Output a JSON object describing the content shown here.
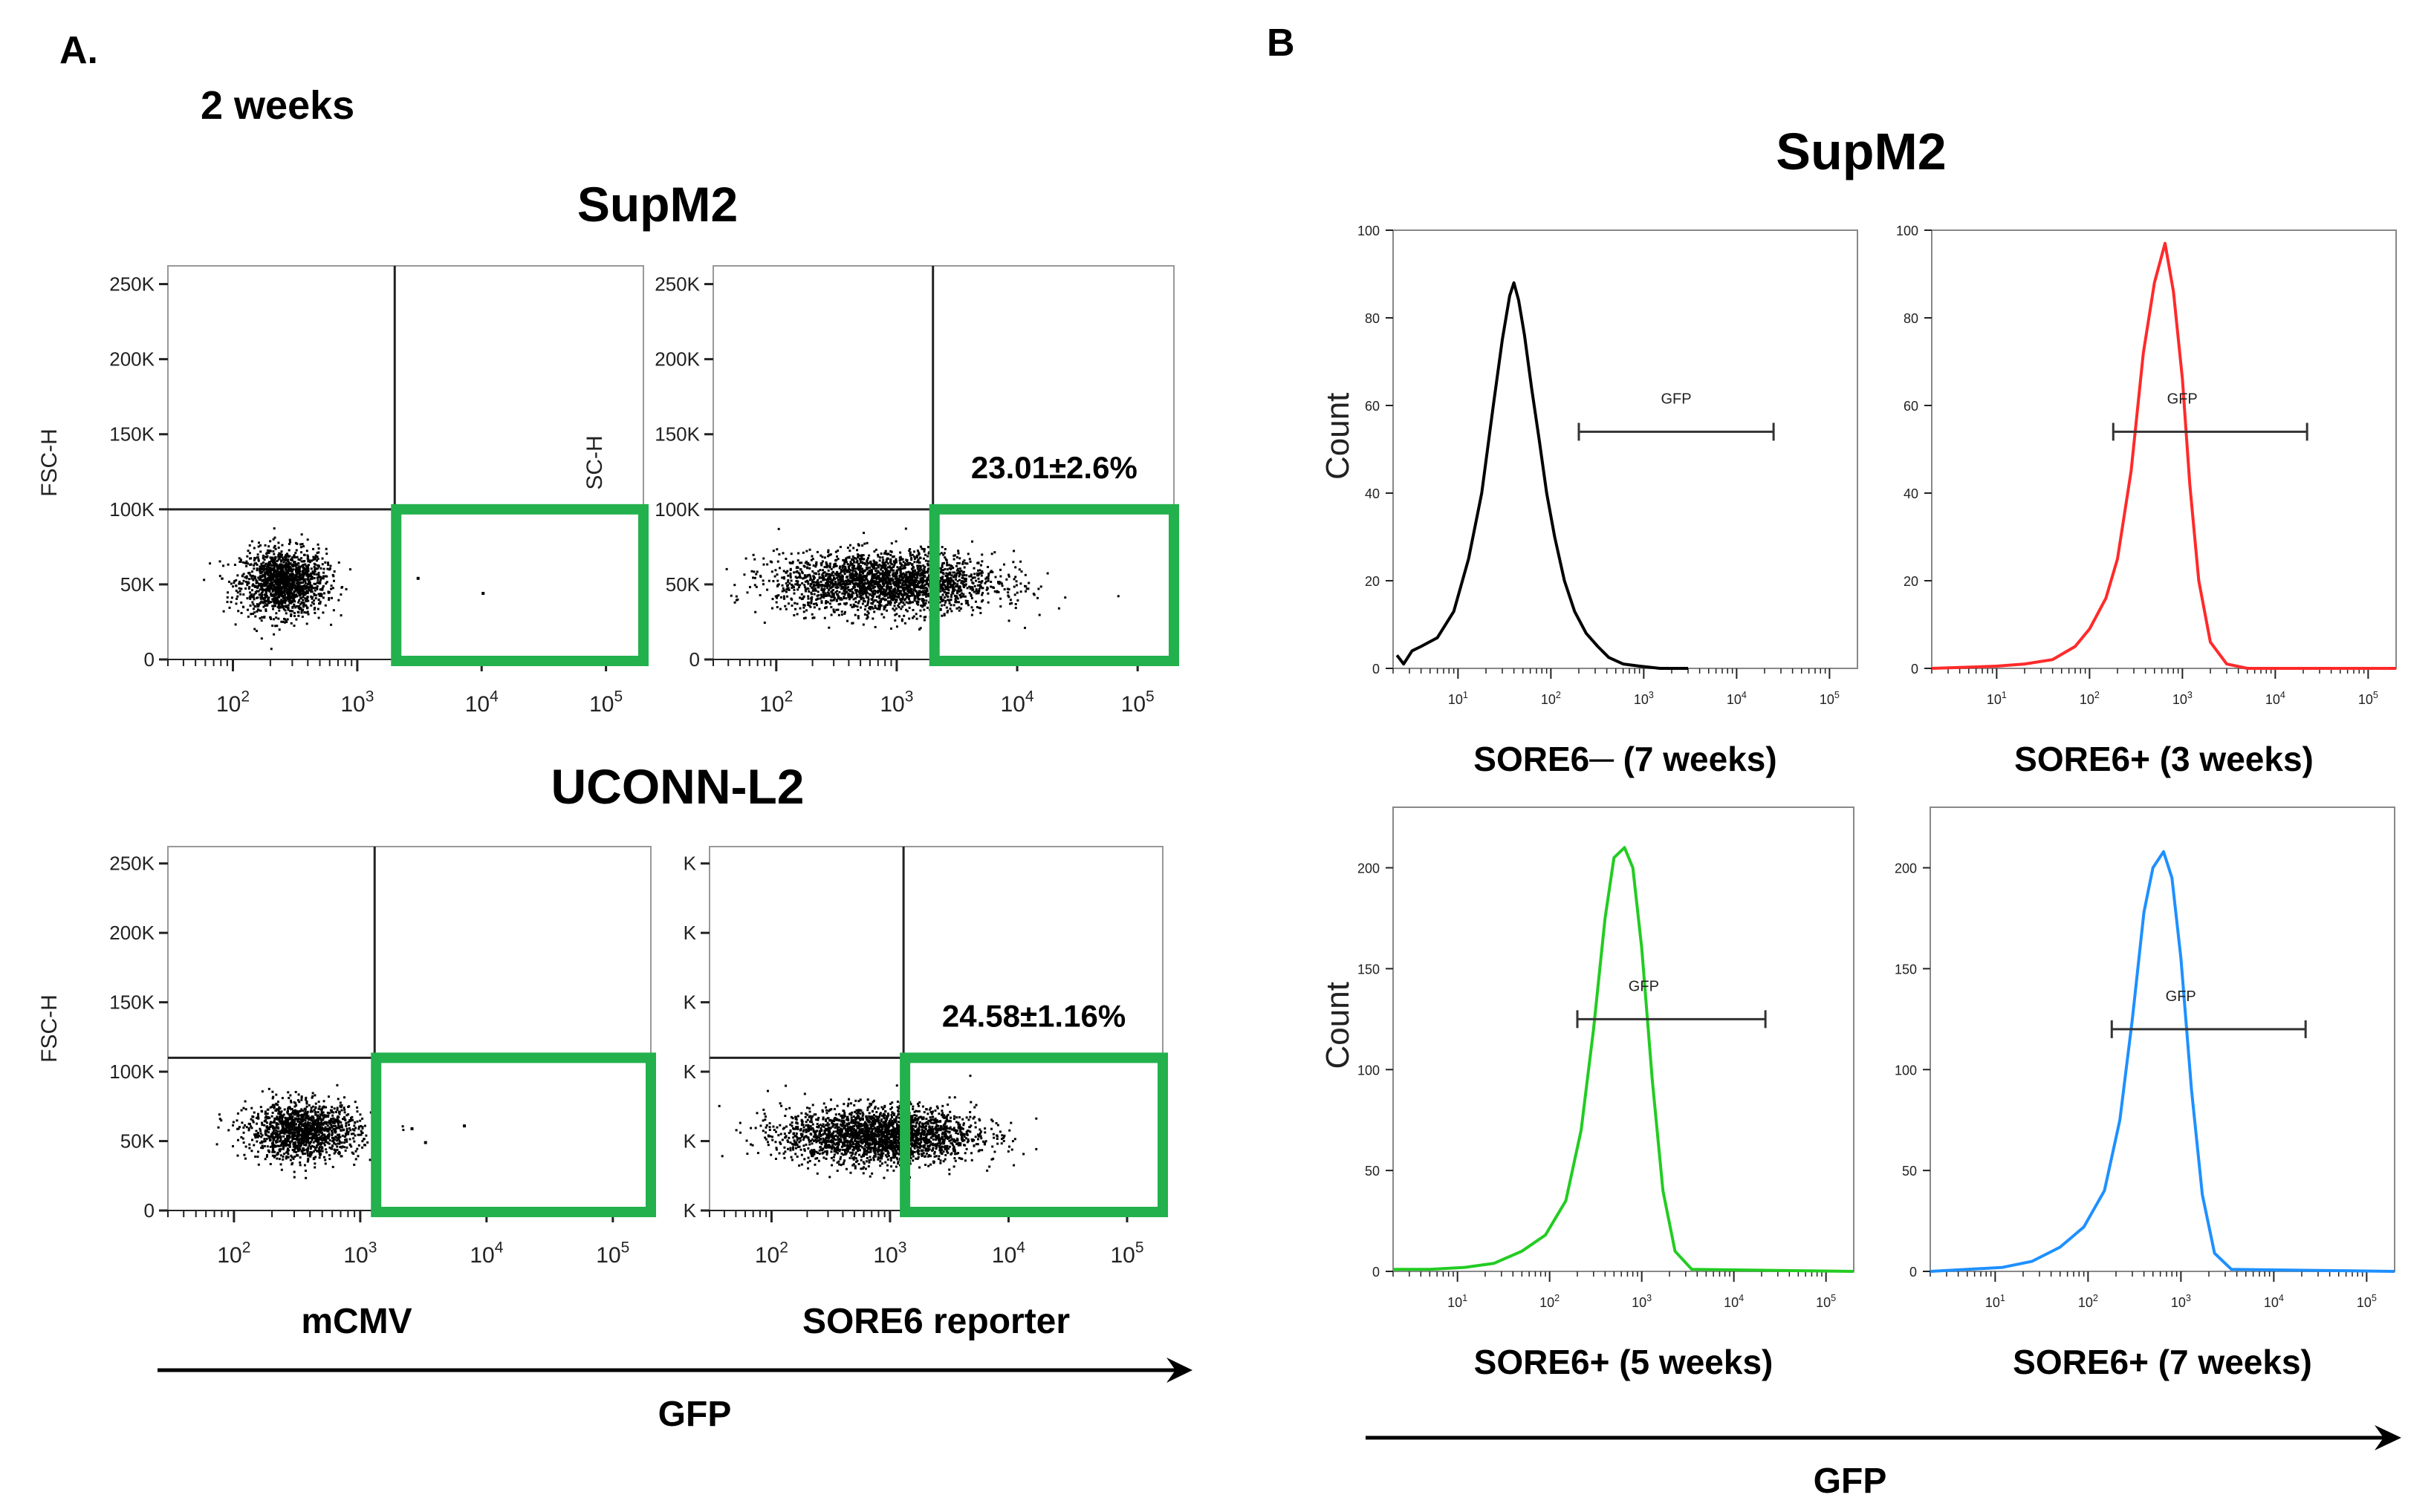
{
  "colors": {
    "black": "#000000",
    "gate_green": "#22B14C",
    "red": "#FF2A2A",
    "green": "#22CC22",
    "blue": "#1E90FF",
    "axis": "#333333"
  },
  "panel_a": {
    "label": "A.",
    "subtitle": "2 weeks",
    "row1_title": "SupM2",
    "row2_title": "UCONN-L2",
    "col1_label": "mCMV",
    "col2_label": "SORE6 reporter",
    "arrow_label": "GFP"
  },
  "panel_b": {
    "label": "B",
    "title": "SupM2",
    "arrow_label": "GFP"
  },
  "chart_data": [
    {
      "id": "a_supm2_mcmv",
      "type": "scatter",
      "xlabel": "",
      "ylabel": "FSC-H",
      "x_scale": "log",
      "xlim": [
        30,
        200000
      ],
      "ylim": [
        0,
        262144
      ],
      "x_ticks": [
        "10^2",
        "10^3",
        "10^4",
        "10^5"
      ],
      "y_ticks": [
        "0",
        "50K",
        "100K",
        "150K",
        "200K",
        "250K"
      ],
      "quadrant": {
        "x": 2000,
        "y": 100000
      },
      "gate": {
        "x": [
          2000,
          200000
        ],
        "y": [
          0,
          100000
        ]
      },
      "cluster": {
        "center_x": 250,
        "center_y": 52000,
        "n": 1500,
        "spread_x_log": 0.17,
        "spread_y": 11000
      },
      "outliers": [
        {
          "x": 3000,
          "y": 55000
        },
        {
          "x": 10000,
          "y": 45000
        }
      ],
      "annotation": ""
    },
    {
      "id": "a_supm2_sore6",
      "type": "scatter",
      "xlabel": "",
      "ylabel": "SC-H",
      "x_scale": "log",
      "xlim": [
        30,
        200000
      ],
      "ylim": [
        0,
        262144
      ],
      "x_ticks": [
        "10^2",
        "10^3",
        "10^4",
        "10^5"
      ],
      "y_ticks": [
        "0",
        "50K",
        "100K",
        "150K",
        "200K",
        "250K"
      ],
      "quadrant": {
        "x": 2000,
        "y": 100000
      },
      "gate": {
        "x": [
          2000,
          200000
        ],
        "y": [
          0,
          100000
        ]
      },
      "cluster": {
        "center_x": 800,
        "center_y": 52000,
        "n": 2500,
        "spread_x_log": 0.45,
        "spread_y": 10000
      },
      "outliers": [],
      "annotation": "23.01±2.6%"
    },
    {
      "id": "a_uconn_mcmv",
      "type": "scatter",
      "xlabel": "mCMV",
      "ylabel": "FSC-H",
      "x_scale": "log",
      "xlim": [
        30,
        200000
      ],
      "ylim": [
        0,
        262144
      ],
      "x_ticks": [
        "10^2",
        "10^3",
        "10^4",
        "10^5"
      ],
      "y_ticks": [
        "0",
        "50K",
        "100K",
        "150K",
        "200K",
        "250K"
      ],
      "quadrant": {
        "x": 1300,
        "y": 110000
      },
      "gate": {
        "x": [
          1300,
          200000
        ],
        "y": [
          0,
          110000
        ]
      },
      "cluster": {
        "center_x": 350,
        "center_y": 58000,
        "n": 1400,
        "spread_x_log": 0.22,
        "spread_y": 10000
      },
      "outliers": [
        {
          "x": 2500,
          "y": 60000
        },
        {
          "x": 3200,
          "y": 50000
        },
        {
          "x": 6500,
          "y": 62000
        }
      ],
      "annotation": ""
    },
    {
      "id": "a_uconn_sore6",
      "type": "scatter",
      "xlabel": "SORE6 reporter",
      "ylabel": "",
      "x_scale": "log",
      "xlim": [
        30,
        200000
      ],
      "ylim": [
        0,
        262144
      ],
      "x_ticks": [
        "10^2",
        "10^3",
        "10^4",
        "10^5"
      ],
      "y_ticks": [
        "K",
        "K",
        "K",
        "K",
        "K",
        "K"
      ],
      "quadrant": {
        "x": 1300,
        "y": 110000
      },
      "gate": {
        "x": [
          1300,
          200000
        ],
        "y": [
          0,
          110000
        ]
      },
      "cluster": {
        "center_x": 800,
        "center_y": 55000,
        "n": 2500,
        "spread_x_log": 0.4,
        "spread_y": 10000
      },
      "outliers": [],
      "annotation": "24.58±1.16%"
    },
    {
      "id": "b_sore6neg_7w",
      "type": "histogram",
      "color": "#000000",
      "xlabel": "SORE6─ (7 weeks)",
      "ylabel": "Count",
      "x_scale": "log",
      "xlim": [
        2,
        200000
      ],
      "ylim": [
        0,
        100
      ],
      "x_ticks": [
        "10^1",
        "10^2",
        "10^3",
        "10^4",
        "10^5"
      ],
      "y_ticks": [
        "0",
        "20",
        "40",
        "60",
        "80",
        "100"
      ],
      "peak": {
        "x": 40,
        "y": 88
      },
      "width_log": 0.25,
      "gate": {
        "label": "GFP",
        "x": [
          200,
          25000
        ],
        "y": 54
      },
      "curve_x": [
        2.2,
        2.6,
        3.2,
        4,
        6,
        9,
        13,
        18,
        24,
        30,
        36,
        40,
        45,
        52,
        62,
        75,
        90,
        110,
        140,
        180,
        240,
        320,
        420,
        600,
        900,
        1500,
        3000
      ],
      "curve_y": [
        3,
        1,
        4,
        5,
        7,
        13,
        25,
        40,
        60,
        75,
        85,
        88,
        84,
        76,
        64,
        52,
        40,
        30,
        20,
        13,
        8,
        5,
        2.5,
        1,
        0.5,
        0,
        0
      ]
    },
    {
      "id": "b_sore6pos_3w",
      "type": "histogram",
      "color": "#FF2A2A",
      "xlabel": "SORE6+ (3 weeks)",
      "ylabel": "",
      "x_scale": "log",
      "xlim": [
        2,
        200000
      ],
      "ylim": [
        0,
        100
      ],
      "x_ticks": [
        "10^1",
        "10^2",
        "10^3",
        "10^4",
        "10^5"
      ],
      "y_ticks": [
        "0",
        "20",
        "40",
        "60",
        "80",
        "100"
      ],
      "peak": {
        "x": 650,
        "y": 97
      },
      "width_log": 0.22,
      "gate": {
        "label": "GFP",
        "x": [
          180,
          22000
        ],
        "y": 54
      },
      "curve_x": [
        2,
        4,
        10,
        20,
        40,
        70,
        100,
        150,
        200,
        280,
        380,
        500,
        650,
        800,
        1000,
        1200,
        1500,
        2000,
        3000,
        5000,
        200000
      ],
      "curve_y": [
        0,
        0.2,
        0.5,
        1,
        2,
        5,
        9,
        16,
        25,
        45,
        72,
        88,
        97,
        86,
        66,
        42,
        20,
        6,
        1,
        0,
        0
      ]
    },
    {
      "id": "b_sore6pos_5w",
      "type": "histogram",
      "color": "#22CC22",
      "xlabel": "SORE6+ (5 weeks)",
      "ylabel": "Count",
      "x_scale": "log",
      "xlim": [
        2,
        200000
      ],
      "ylim": [
        0,
        230
      ],
      "x_ticks": [
        "10^1",
        "10^2",
        "10^3",
        "10^4",
        "10^5"
      ],
      "y_ticks": [
        "0",
        "50",
        "100",
        "150",
        "200"
      ],
      "peak": {
        "x": 750,
        "y": 210
      },
      "width_log": 0.22,
      "gate": {
        "label": "GFP",
        "x": [
          200,
          22000
        ],
        "y": 125
      },
      "curve_x": [
        2,
        5,
        12,
        25,
        50,
        90,
        150,
        220,
        300,
        400,
        500,
        650,
        800,
        1000,
        1300,
        1700,
        2300,
        3500,
        200000
      ],
      "curve_y": [
        1,
        1,
        2,
        4,
        10,
        18,
        35,
        70,
        120,
        175,
        205,
        210,
        200,
        160,
        95,
        40,
        10,
        1,
        0
      ]
    },
    {
      "id": "b_sore6pos_7w",
      "type": "histogram",
      "color": "#1E90FF",
      "xlabel": "SORE6+ (7 weeks)",
      "ylabel": "",
      "x_scale": "log",
      "xlim": [
        2,
        200000
      ],
      "ylim": [
        0,
        230
      ],
      "x_ticks": [
        "10^1",
        "10^2",
        "10^3",
        "10^4",
        "10^5"
      ],
      "y_ticks": [
        "0",
        "50",
        "100",
        "150",
        "200"
      ],
      "peak": {
        "x": 700,
        "y": 208
      },
      "width_log": 0.22,
      "gate": {
        "label": "GFP",
        "x": [
          180,
          22000
        ],
        "y": 120
      },
      "curve_x": [
        2,
        5,
        12,
        25,
        50,
        90,
        150,
        220,
        300,
        400,
        500,
        650,
        800,
        1000,
        1300,
        1700,
        2300,
        3500,
        200000
      ],
      "curve_y": [
        0,
        1,
        2,
        5,
        12,
        22,
        40,
        75,
        125,
        178,
        200,
        208,
        195,
        155,
        90,
        38,
        9,
        1,
        0
      ]
    }
  ]
}
